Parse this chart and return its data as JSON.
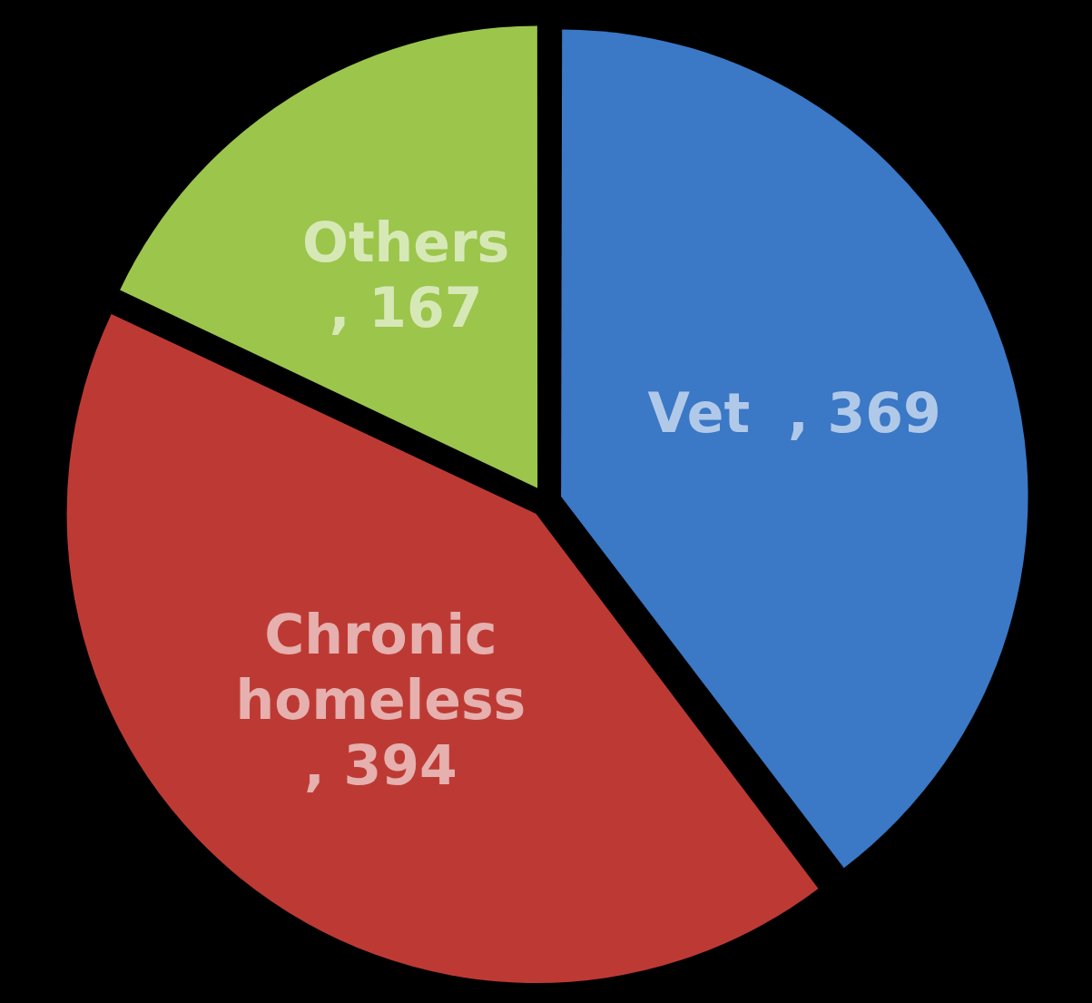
{
  "chart_data": {
    "type": "pie",
    "categories": [
      "Vet",
      "Chronic homeless",
      "Others"
    ],
    "values": [
      369,
      394,
      167
    ],
    "value_labels": [
      ", 369",
      ", 394",
      ", 167"
    ],
    "colors": [
      "#3b78c6",
      "#bd3a34",
      "#9cc54c"
    ],
    "legend": false
  }
}
